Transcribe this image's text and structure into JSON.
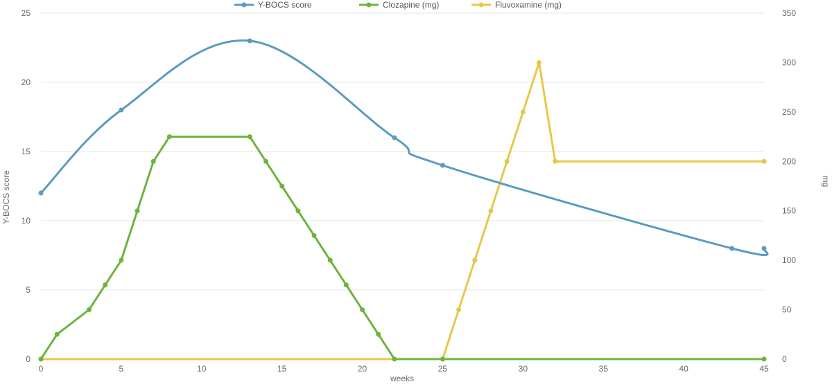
{
  "chart_data": {
    "type": "line",
    "xlabel": "weeks",
    "ylabel_left": "Y-BOCS score",
    "ylabel_right": "mg",
    "xlim": [
      0,
      45
    ],
    "ylim_left": [
      0,
      25
    ],
    "ylim_right": [
      0,
      350
    ],
    "x_ticks": [
      0,
      5,
      10,
      15,
      20,
      25,
      30,
      35,
      40,
      45
    ],
    "y_left_ticks": [
      0,
      5,
      10,
      15,
      20,
      25
    ],
    "y_right_ticks": [
      0,
      50,
      100,
      150,
      200,
      250,
      300,
      350
    ],
    "grid": "horizontal",
    "legend_position": "top",
    "series": [
      {
        "name": "Y-BOCS score",
        "color": "#5b9bbf",
        "axis": "left",
        "smooth": true,
        "points": [
          [
            0,
            12
          ],
          [
            5,
            18
          ],
          [
            13,
            23
          ],
          [
            22,
            16
          ],
          [
            25,
            14
          ],
          [
            43,
            8
          ],
          [
            45,
            8
          ]
        ]
      },
      {
        "name": "Clozapine (mg)",
        "color": "#6db33f",
        "axis": "right",
        "smooth": false,
        "points": [
          [
            0,
            0
          ],
          [
            1,
            25
          ],
          [
            3,
            50
          ],
          [
            4,
            75
          ],
          [
            5,
            100
          ],
          [
            6,
            150
          ],
          [
            7,
            200
          ],
          [
            8,
            225
          ],
          [
            13,
            225
          ],
          [
            14,
            200
          ],
          [
            15,
            175
          ],
          [
            16,
            150
          ],
          [
            17,
            125
          ],
          [
            18,
            100
          ],
          [
            19,
            75
          ],
          [
            20,
            50
          ],
          [
            21,
            25
          ],
          [
            22,
            0
          ],
          [
            25,
            0
          ],
          [
            45,
            0
          ]
        ]
      },
      {
        "name": "Fluvoxamine (mg)",
        "color": "#e6c84a",
        "axis": "right",
        "smooth": false,
        "points": [
          [
            0,
            0
          ],
          [
            25,
            0
          ],
          [
            26,
            50
          ],
          [
            27,
            100
          ],
          [
            28,
            150
          ],
          [
            29,
            200
          ],
          [
            30,
            250
          ],
          [
            31,
            300
          ],
          [
            32,
            200
          ],
          [
            45,
            200
          ]
        ]
      }
    ]
  }
}
